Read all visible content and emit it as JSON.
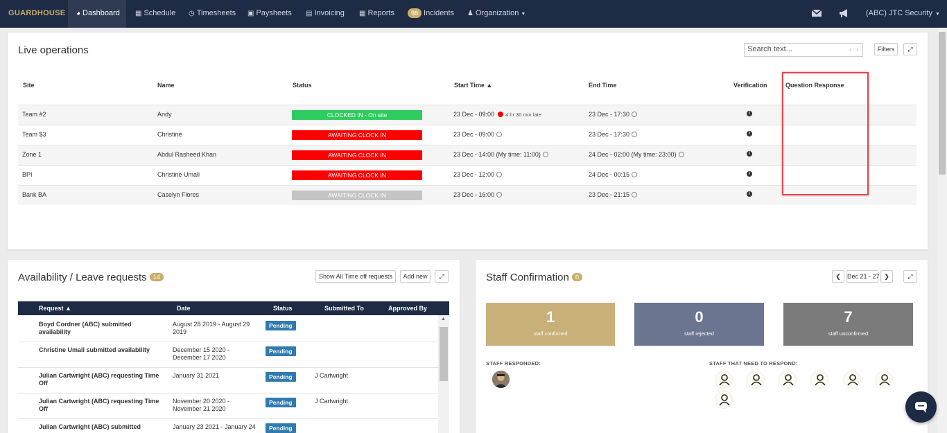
{
  "nav": {
    "brand": "GUARDHOUSE",
    "items": [
      {
        "label": "Dashboard"
      },
      {
        "label": "Schedule"
      },
      {
        "label": "Timesheets"
      },
      {
        "label": "Paysheets"
      },
      {
        "label": "Invoicing"
      },
      {
        "label": "Reports"
      },
      {
        "label": "Incidents",
        "badge": "98"
      },
      {
        "label": "Organization"
      }
    ],
    "account": "(ABC) JTC Security"
  },
  "live": {
    "title": "Live operations",
    "search_placeholder": "Search text...",
    "filters_label": "Filters",
    "columns": [
      "Site",
      "Name",
      "Status",
      "Start Time ▲",
      "End Time",
      "Verification",
      "Question Response"
    ],
    "rows": [
      {
        "site": "Team #2",
        "name": "Andy",
        "status": "CLOCKED IN - On site",
        "start": "23 Dec - 09:00",
        "late": "4 hr 30 min late",
        "end": "23 Dec - 17:30"
      },
      {
        "site": "Team $3",
        "name": "Christine",
        "status": "AWAITING CLOCK IN",
        "start": "23 Dec - 09:00",
        "end": "23 Dec - 17:30"
      },
      {
        "site": "Zone 1",
        "name": "Abdul Rasheed Khan",
        "status": "AWAITING CLOCK IN",
        "start": "23 Dec - 14:00 (My time: 11:00)",
        "end": "24 Dec - 02:00 (My time: 23:00)"
      },
      {
        "site": "BPI",
        "name": "Christine Umali",
        "status": "AWAITING CLOCK IN",
        "start": "23 Dec - 12:00",
        "end": "24 Dec - 00:15"
      },
      {
        "site": "Bank BA",
        "name": "Caselyn Flores",
        "status": "AWAITING CLOCK IN",
        "start": "23 Dec - 16:00",
        "end": "23 Dec - 21:15"
      }
    ],
    "status_colors": {
      "clocked_in": "#2ecc5e",
      "awaiting": "#ff0000",
      "inactive": "#c4c4c4"
    }
  },
  "availability": {
    "title": "Availability / Leave requests",
    "badge": "14",
    "show_all_label": "Show All Time off requests",
    "add_label": "Add new",
    "columns": [
      "Request ▲",
      "Date",
      "Status",
      "Submitted To",
      "Approved By"
    ],
    "rows": [
      {
        "request": "Boyd Cordner (ABC) submitted availability",
        "date": "August 28 2019 - August 29 2019",
        "status": "Pending",
        "submitted_to": ""
      },
      {
        "request": "Christine Umali submitted availability",
        "date": "December 15 2020 - December 17 2020",
        "status": "Pending",
        "submitted_to": ""
      },
      {
        "request": "Julian Cartwright (ABC) requesting Time Off",
        "date": "January 31 2021",
        "status": "Pending",
        "submitted_to": "J Cartwright"
      },
      {
        "request": "Julian Cartwright (ABC) requesting Time Off",
        "date": "November 20 2020 - November 21 2020",
        "status": "Pending",
        "submitted_to": "J Cartwright"
      },
      {
        "request": "Julian Cartwright (ABC) submitted",
        "date": "January 23 2021 - January 24",
        "status": "Pending",
        "submitted_to": ""
      }
    ]
  },
  "staff": {
    "title": "Staff Confirmation",
    "badge": "0",
    "date_range": "Dec 21 - 27",
    "cards": [
      {
        "num": "1",
        "label": "staff confirmed",
        "color": "#c9b078"
      },
      {
        "num": "0",
        "label": "staff rejected",
        "color": "#6b7590"
      },
      {
        "num": "7",
        "label": "staff unconfirmed",
        "color": "#7b7b7b"
      }
    ],
    "responded_label": "STAFF RESPONDED:",
    "need_label": "STAFF THAT NEED TO RESPOND:"
  },
  "colors": {
    "navbar": "#1d2b44",
    "accent": "#c9ad6c",
    "highlight": "#e0474c"
  }
}
